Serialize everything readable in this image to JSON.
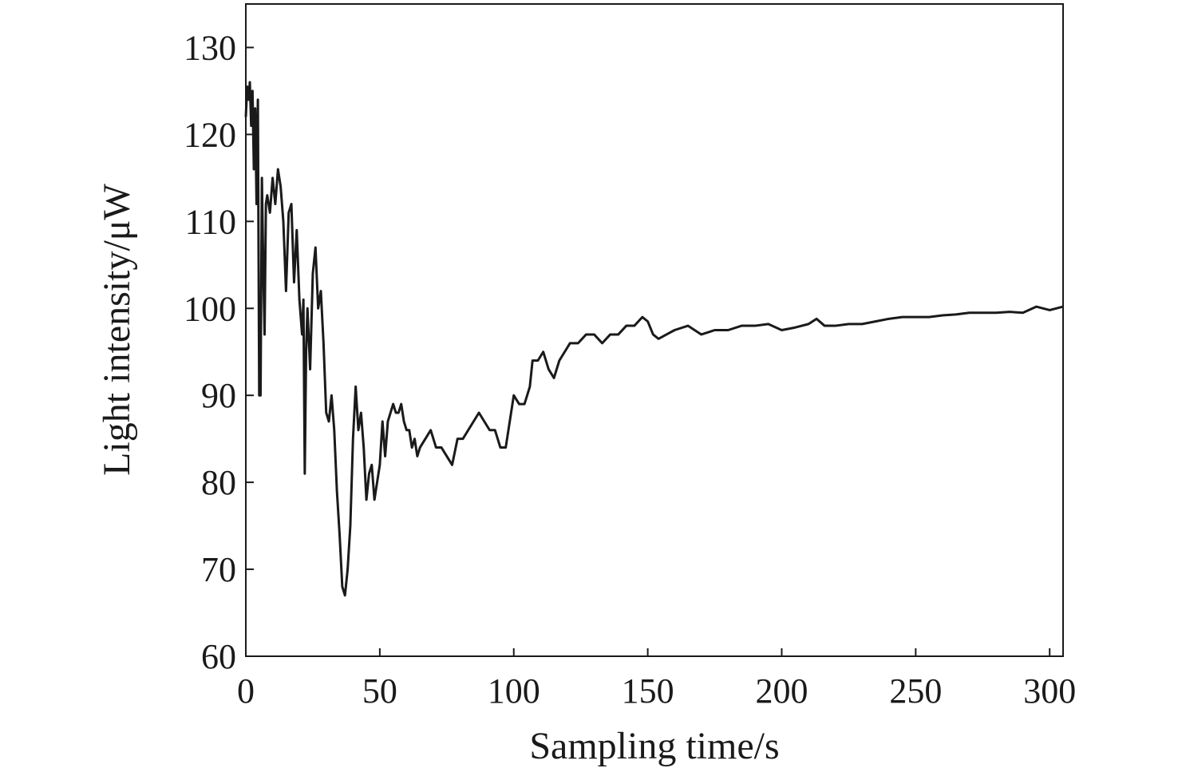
{
  "chart_data": {
    "type": "line",
    "x_label": "Sampling time/s",
    "y_label": "Light intensity/μW",
    "xlim": [
      0,
      305
    ],
    "xticks": [
      0,
      50,
      100,
      150,
      200,
      250,
      300
    ],
    "ylim": [
      60,
      135
    ],
    "yticks": [
      60,
      70,
      80,
      90,
      100,
      110,
      120,
      130
    ],
    "x": [
      0,
      0.5,
      1,
      1.5,
      2,
      2.5,
      3,
      3.5,
      4,
      4.5,
      5,
      5.5,
      6,
      6.5,
      7,
      7.5,
      8,
      9,
      10,
      11,
      12,
      13,
      14,
      15,
      16,
      17,
      18,
      19,
      20,
      21,
      21.5,
      22,
      22.5,
      23,
      24,
      25,
      26,
      27,
      28,
      29,
      30,
      31,
      32,
      33,
      34,
      35,
      36,
      37,
      38,
      39,
      40,
      41,
      42,
      43,
      44,
      45,
      46,
      47,
      48,
      49,
      50,
      51,
      52,
      53,
      54,
      55,
      56,
      57,
      58,
      59,
      60,
      61,
      62,
      63,
      64,
      65,
      67,
      69,
      71,
      73,
      75,
      77,
      79,
      81,
      83,
      85,
      87,
      89,
      91,
      93,
      95,
      97,
      99,
      100,
      102,
      104,
      106,
      107,
      109,
      111,
      113,
      115,
      117,
      119,
      121,
      124,
      127,
      130,
      133,
      136,
      139,
      142,
      145,
      148,
      150,
      152,
      154,
      157,
      160,
      165,
      170,
      175,
      180,
      185,
      190,
      195,
      200,
      205,
      210,
      213,
      216,
      220,
      225,
      230,
      235,
      240,
      245,
      250,
      255,
      260,
      265,
      270,
      275,
      280,
      285,
      290,
      295,
      300,
      305
    ],
    "series": [
      {
        "color": "#1a1a1a",
        "values": [
          122,
          125.5,
          124,
          126,
          121,
          125,
          116,
          123,
          112,
          124,
          90,
          90,
          115,
          105,
          97,
          112,
          113,
          111,
          115,
          112,
          116,
          114,
          110,
          102,
          111,
          112,
          103,
          109,
          101,
          97,
          101,
          81,
          95,
          100,
          93,
          104,
          107,
          100,
          102,
          96,
          88,
          87,
          90,
          86,
          79,
          74,
          68,
          67,
          70,
          75,
          85,
          91,
          86,
          88,
          84,
          78,
          81,
          82,
          78,
          80,
          82,
          87,
          83,
          87,
          88,
          89,
          88,
          88,
          89,
          87,
          86,
          86,
          84,
          85,
          83,
          84,
          85,
          86,
          84,
          84,
          83,
          82,
          85,
          85,
          86,
          87,
          88,
          87,
          86,
          86,
          84,
          84,
          88,
          90,
          89,
          89,
          91,
          94,
          94,
          95,
          93,
          92,
          94,
          95,
          96,
          96,
          97,
          97,
          96,
          97,
          97,
          98,
          98,
          99,
          98.5,
          97,
          96.5,
          97,
          97.5,
          98,
          97,
          97.5,
          97.5,
          98,
          98,
          98.2,
          97.5,
          97.8,
          98.2,
          98.8,
          98,
          98,
          98.2,
          98.2,
          98.5,
          98.8,
          99,
          99,
          99,
          99.2,
          99.3,
          99.5,
          99.5,
          99.5,
          99.6,
          99.5,
          100.2,
          99.8,
          100.2
        ]
      }
    ]
  }
}
